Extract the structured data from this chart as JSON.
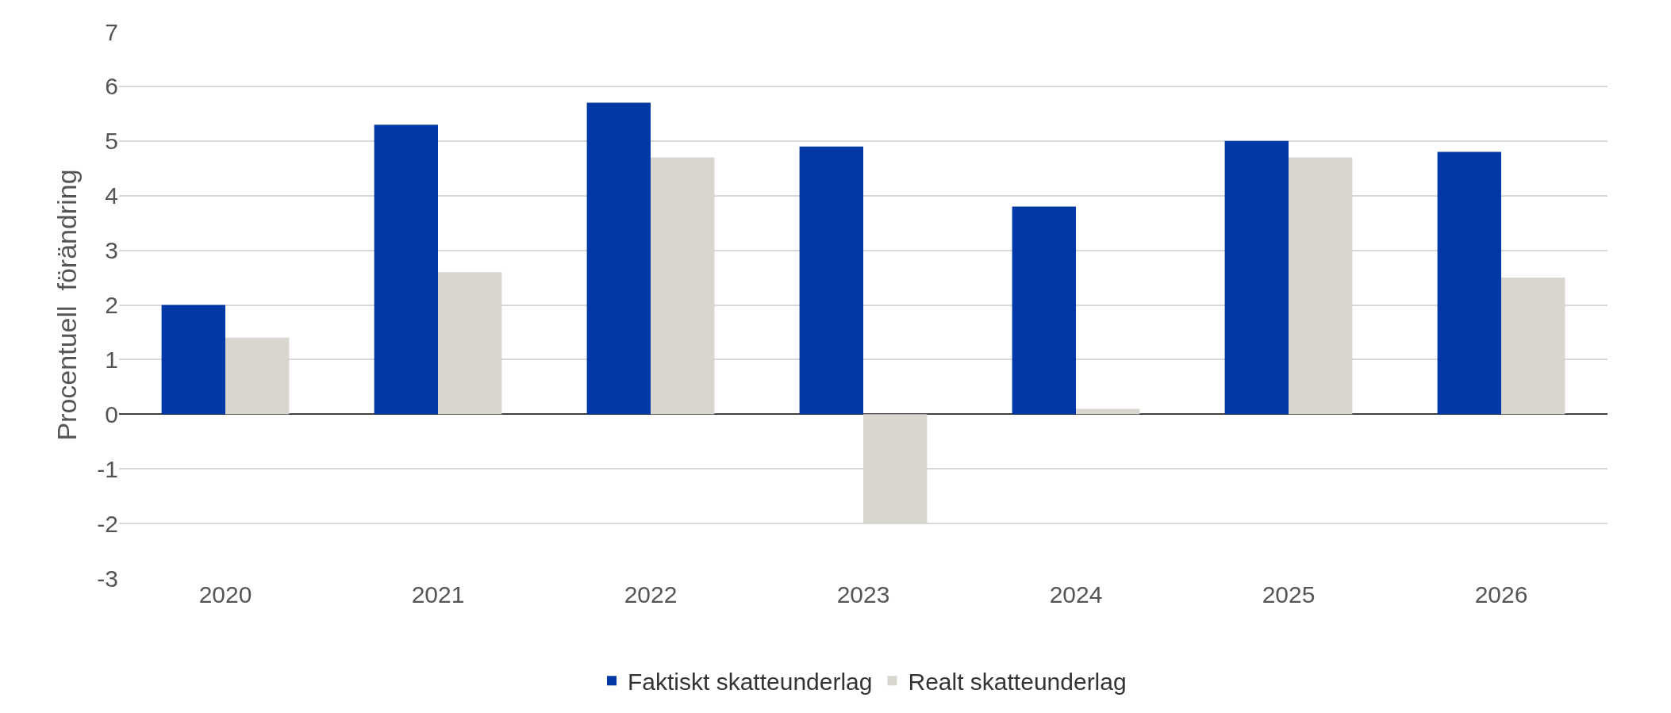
{
  "chart_data": {
    "type": "bar",
    "ylabel": "Procentuell  förändring",
    "categories": [
      "2020",
      "2021",
      "2022",
      "2023",
      "2024",
      "2025",
      "2026"
    ],
    "series": [
      {
        "name": "Faktiskt skatteunderlag",
        "color": "#0039a6",
        "values": [
          2.0,
          5.3,
          5.7,
          4.9,
          3.8,
          5.0,
          4.8
        ]
      },
      {
        "name": "Realt skatteunderlag",
        "color": "#d9d5cf",
        "values": [
          1.4,
          2.6,
          4.7,
          -2.0,
          0.1,
          4.7,
          2.5
        ]
      }
    ],
    "ylim": [
      -3,
      7
    ],
    "yticks": [
      -3,
      -2,
      -1,
      0,
      1,
      2,
      3,
      4,
      5,
      6,
      7
    ],
    "grid": "y",
    "legend": "bottom"
  }
}
